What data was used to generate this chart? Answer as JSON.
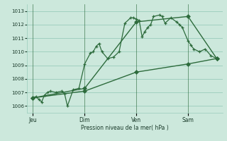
{
  "bg_color": "#cce8dc",
  "grid_color": "#99ccbb",
  "line_color": "#2d6b3c",
  "title": "Pression niveau de la mer( hPa )",
  "ylabel_ticks": [
    1006,
    1007,
    1008,
    1009,
    1010,
    1011,
    1012,
    1013
  ],
  "ylim": [
    1005.5,
    1013.5
  ],
  "day_labels": [
    "Jeu",
    "Dim",
    "Ven",
    "Sam"
  ],
  "day_positions": [
    0,
    9,
    18,
    27
  ],
  "xlim": [
    -1,
    33
  ],
  "series1_x": [
    0,
    0.5,
    1,
    1.5,
    2,
    2.5,
    3,
    4,
    5,
    5.5,
    6,
    7,
    8,
    9,
    10,
    10.5,
    11,
    11.5,
    12,
    13,
    14,
    15,
    16,
    17,
    17.5,
    18,
    18.5,
    19,
    19.5,
    20,
    20.5,
    21,
    22,
    22.5,
    23,
    24,
    25,
    25.5,
    26,
    27,
    27.5,
    28,
    29,
    30,
    31,
    32
  ],
  "series1_y": [
    1006.6,
    1006.7,
    1006.5,
    1006.3,
    1006.8,
    1007.0,
    1007.1,
    1007.0,
    1007.1,
    1006.9,
    1006.0,
    1007.2,
    1007.3,
    1009.1,
    1009.9,
    1010.0,
    1010.4,
    1010.6,
    1010.0,
    1009.5,
    1009.6,
    1010.0,
    1012.1,
    1012.5,
    1012.5,
    1012.4,
    1012.3,
    1011.1,
    1011.5,
    1011.8,
    1012.0,
    1012.6,
    1012.7,
    1012.6,
    1012.1,
    1012.5,
    1012.2,
    1012.0,
    1011.8,
    1010.8,
    1010.5,
    1010.2,
    1010.0,
    1010.2,
    1009.7,
    1009.5
  ],
  "series2_x": [
    0,
    9,
    18,
    27,
    32
  ],
  "series2_y": [
    1006.6,
    1007.3,
    1012.2,
    1012.6,
    1009.5
  ],
  "series3_x": [
    0,
    9,
    18,
    27,
    32
  ],
  "series3_y": [
    1006.6,
    1007.1,
    1008.5,
    1009.1,
    1009.5
  ]
}
